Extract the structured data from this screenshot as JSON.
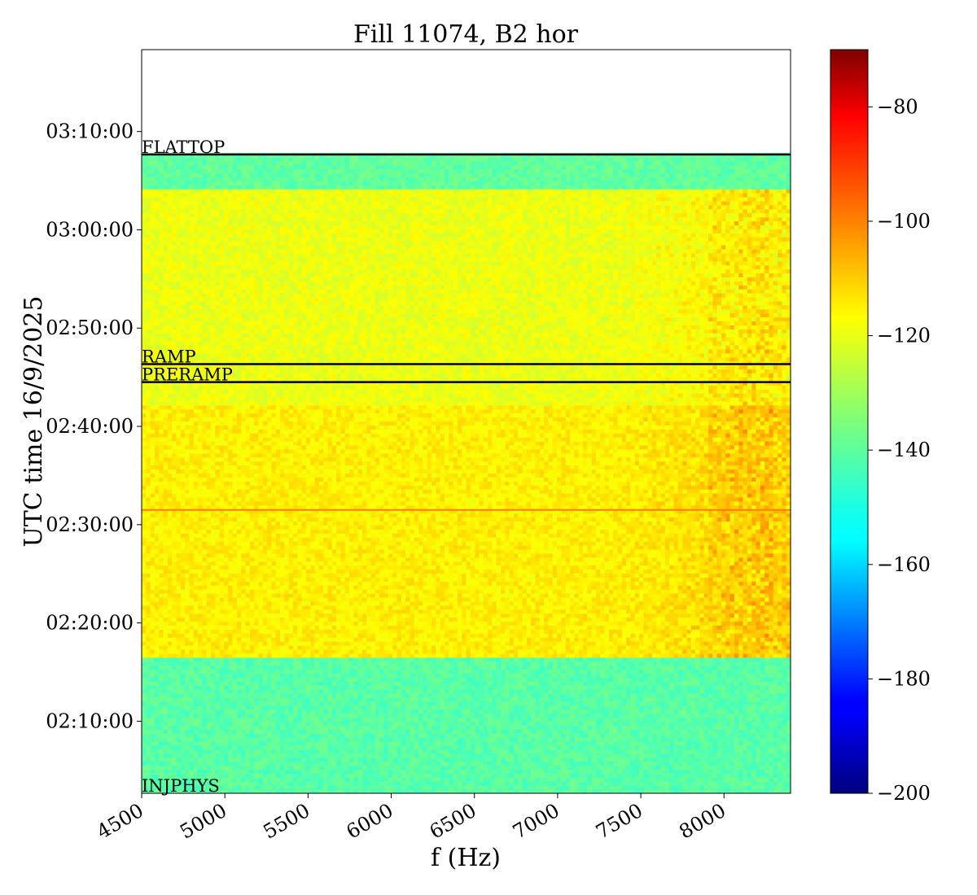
{
  "chart_data": {
    "type": "heatmap",
    "title": "Fill 11074, B2 hor",
    "xlabel": "f (Hz)",
    "ylabel": "UTC time 16/9/2025",
    "xlim": [
      4500,
      8400
    ],
    "x_ticks": [
      4500,
      5000,
      5500,
      6000,
      6500,
      7000,
      7500,
      8000
    ],
    "y_ticks": [
      {
        "label": "02:10:00",
        "t": 600
      },
      {
        "label": "02:20:00",
        "t": 1200
      },
      {
        "label": "02:30:00",
        "t": 1800
      },
      {
        "label": "02:40:00",
        "t": 2400
      },
      {
        "label": "02:50:00",
        "t": 3000
      },
      {
        "label": "03:00:00",
        "t": 3600
      },
      {
        "label": "03:10:00",
        "t": 4200
      }
    ],
    "ylim_time": [
      "02:02:40",
      "03:18:20"
    ],
    "colorscale": "jet",
    "zlim": [
      -200,
      -70
    ],
    "colorbar_ticks": [
      -80,
      -100,
      -120,
      -140,
      -160,
      -180,
      -200
    ],
    "data_end_time": "03:07:50",
    "bands": [
      {
        "from": "02:02:40",
        "to": "02:16:30",
        "level_db": -140
      },
      {
        "from": "02:16:30",
        "to": "02:42:00",
        "level_db": -117
      },
      {
        "from": "02:42:00",
        "to": "03:04:00",
        "level_db": -121
      },
      {
        "from": "03:04:00",
        "to": "03:07:50",
        "level_db": -139
      }
    ],
    "horizontal_line": {
      "time": "02:31:30",
      "level_db": -102
    },
    "phases": [
      {
        "label": "INJPHYS",
        "time": "02:02:40"
      },
      {
        "label": "PRERAMP",
        "time": "02:44:30"
      },
      {
        "label": "RAMP",
        "time": "02:46:20"
      },
      {
        "label": "FLATTOP",
        "time": "03:07:40"
      }
    ]
  }
}
